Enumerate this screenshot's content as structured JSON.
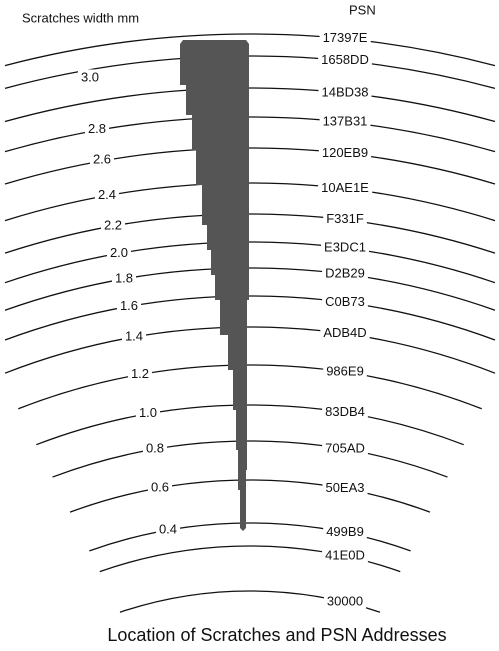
{
  "header": {
    "width_label": "Scratches width mm",
    "psn_label": "PSN"
  },
  "widths": [
    "3.0",
    "2.8",
    "2.6",
    "2.4",
    "2.2",
    "2.0",
    "1.8",
    "1.6",
    "1.4",
    "1.2",
    "1.0",
    "0.8",
    "0.6",
    "0.4"
  ],
  "psn": [
    "17397E",
    "1658DD",
    "14BD38",
    "137B31",
    "120EB9",
    "10AE1E",
    "F331F",
    "E3DC1",
    "D2B29",
    "C0B73",
    "ADB4D",
    "986E9",
    "83DB4",
    "705AD",
    "50EA3",
    "499B9",
    "41E0D",
    "30000"
  ],
  "caption": "Location of Scratches and PSN Addresses"
}
